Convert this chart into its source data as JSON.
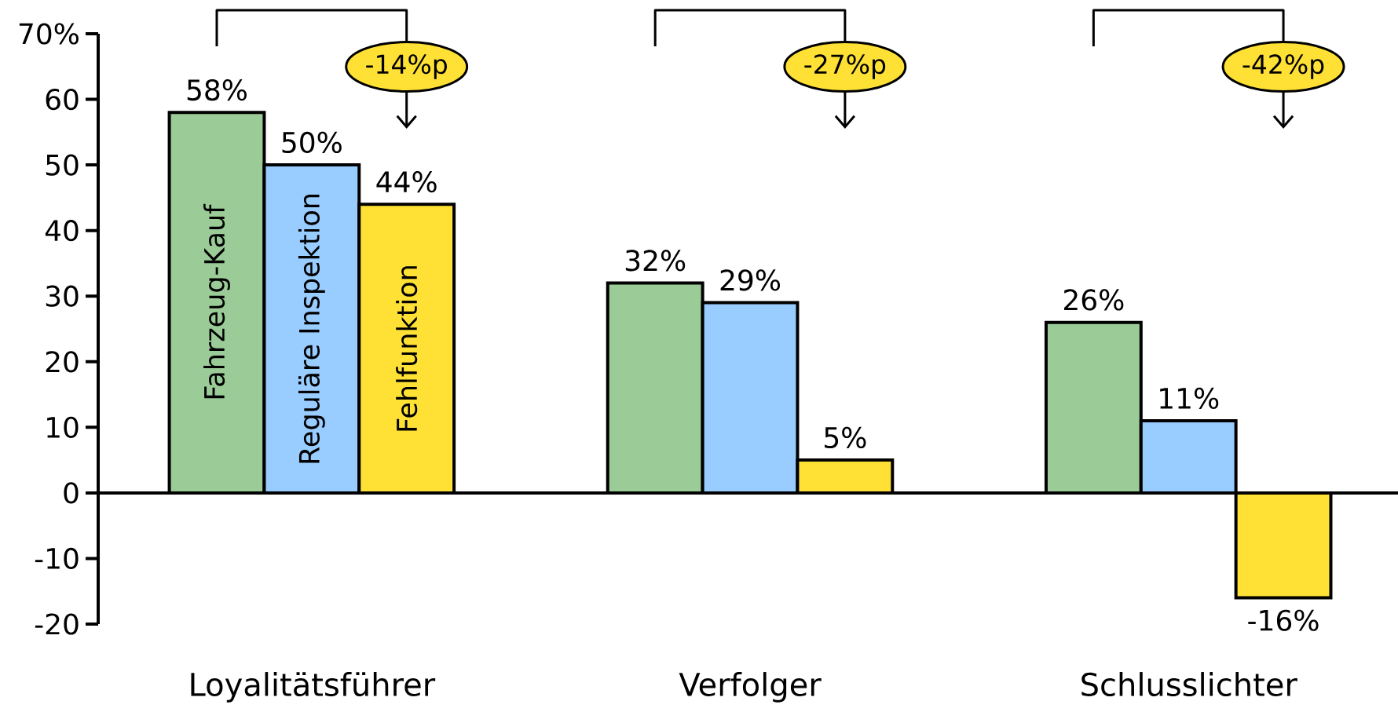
{
  "chart_data": {
    "type": "bar",
    "categories": [
      "Loyalitätsführer",
      "Verfolger",
      "Schlusslichter"
    ],
    "series": [
      {
        "name": "Fahrzeug-Kauf",
        "color": "#9bcc98",
        "values": [
          58,
          32,
          26
        ],
        "value_labels": [
          "58%",
          "32%",
          "26%"
        ]
      },
      {
        "name": "Reguläre Inspektion",
        "color": "#99ccff",
        "values": [
          50,
          29,
          11
        ],
        "value_labels": [
          "50%",
          "29%",
          "11%"
        ]
      },
      {
        "name": "Fehlfunktion",
        "color": "#ffe135",
        "values": [
          44,
          5,
          -16
        ],
        "value_labels": [
          "44%",
          "5%",
          "-16%"
        ]
      }
    ],
    "ylim": [
      -20,
      70
    ],
    "yticks": [
      {
        "value": 70,
        "label": "70%"
      },
      60,
      50,
      40,
      30,
      20,
      10,
      0,
      -10,
      -20
    ],
    "annotations": [
      "-14%p",
      "-27%p",
      "-42%p"
    ]
  }
}
